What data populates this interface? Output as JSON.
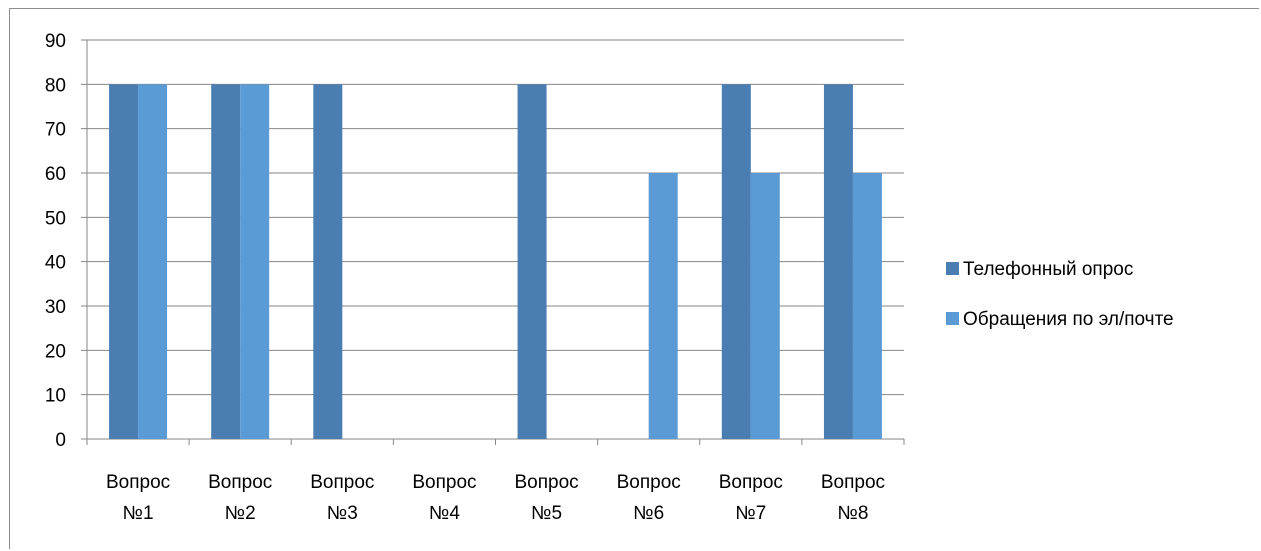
{
  "colors": {
    "series1": "#4a7eb2",
    "series2": "#5b9bd5",
    "grid": "#868686",
    "frame": "#8c8c8c"
  },
  "chart_data": {
    "type": "bar",
    "title": "",
    "xlabel": "",
    "ylabel": "",
    "ylim": [
      0,
      90
    ],
    "yticks": [
      "0",
      "10",
      "20",
      "30",
      "40",
      "50",
      "60",
      "70",
      "80",
      "90"
    ],
    "grid": true,
    "legend_position": "right",
    "categories": [
      [
        "Вопрос",
        "№1"
      ],
      [
        "Вопрос",
        "№2"
      ],
      [
        "Вопрос",
        "№3"
      ],
      [
        "Вопрос",
        "№4"
      ],
      [
        "Вопрос",
        "№5"
      ],
      [
        "Вопрос",
        "№6"
      ],
      [
        "Вопрос",
        "№7"
      ],
      [
        "Вопрос",
        "№8"
      ]
    ],
    "series": [
      {
        "name": "Телефонный опрос",
        "values": [
          80,
          80,
          80,
          0,
          80,
          0,
          80,
          80
        ]
      },
      {
        "name": "Обращения по эл/почте",
        "values": [
          80,
          80,
          0,
          0,
          0,
          60,
          60,
          60
        ]
      }
    ]
  }
}
